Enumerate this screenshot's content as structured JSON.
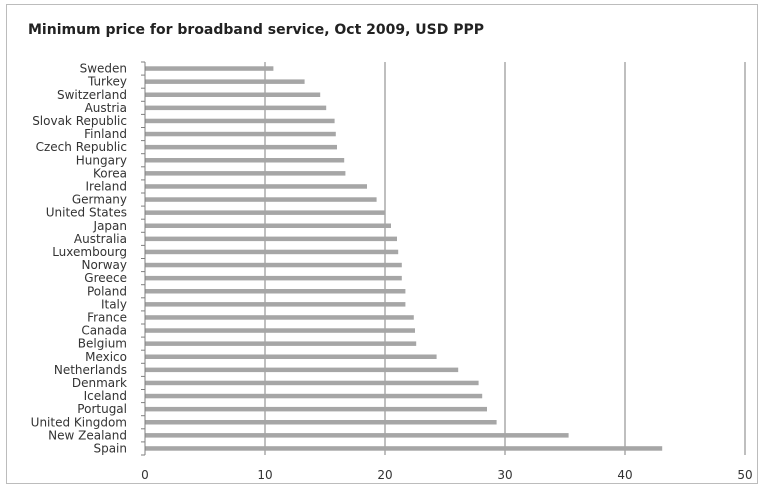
{
  "chart_data": {
    "type": "bar",
    "orientation": "horizontal",
    "title": "Minimum price for broadband service, Oct 2009,  USD PPP",
    "xlabel": "",
    "ylabel": "",
    "xlim": [
      0,
      50
    ],
    "xticks": [
      "0",
      "10",
      "20",
      "30",
      "40",
      "50"
    ],
    "grid": "vertical",
    "legend": "none",
    "bar_color": "#a6a6a6",
    "grid_color": "#7f7f7f",
    "categories": [
      "Sweden",
      "Turkey",
      "Switzerland",
      "Austria",
      "Slovak Republic",
      "Finland",
      "Czech Republic",
      "Hungary",
      "Korea",
      "Ireland",
      "Germany",
      "United States",
      "Japan",
      "Australia",
      "Luxembourg",
      "Norway",
      "Greece",
      "Poland",
      "Italy",
      "France",
      "Canada",
      "Belgium",
      "Mexico",
      "Netherlands",
      "Denmark",
      "Iceland",
      "Portugal",
      "United Kingdom",
      "New Zealand",
      "Spain"
    ],
    "values": [
      10.7,
      13.3,
      14.6,
      15.1,
      15.8,
      15.9,
      16.0,
      16.6,
      16.7,
      18.5,
      19.3,
      20.0,
      20.5,
      21.0,
      21.1,
      21.4,
      21.4,
      21.7,
      21.7,
      22.4,
      22.5,
      22.6,
      24.3,
      26.1,
      27.8,
      28.1,
      28.5,
      29.3,
      35.3,
      43.1
    ]
  }
}
